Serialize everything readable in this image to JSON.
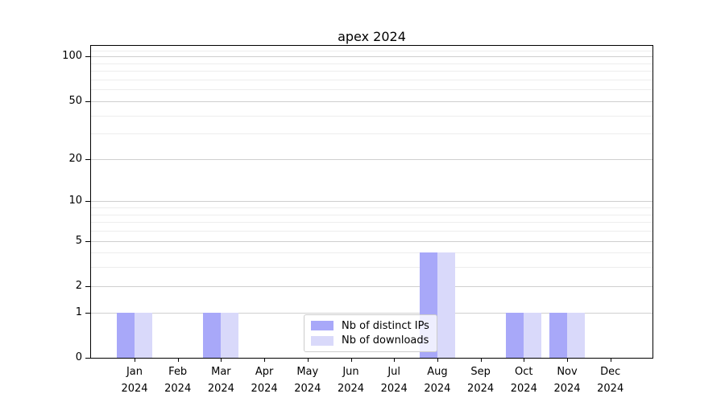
{
  "title": "apex 2024",
  "chart_data": {
    "type": "bar",
    "title": "apex 2024",
    "months": [
      "Jan",
      "Feb",
      "Mar",
      "Apr",
      "May",
      "Jun",
      "Jul",
      "Aug",
      "Sep",
      "Oct",
      "Nov",
      "Dec"
    ],
    "year": "2024",
    "series": [
      {
        "name": "Nb of distinct IPs",
        "color": "#a8a8f9",
        "values": [
          1,
          0,
          1,
          0,
          0,
          0,
          0,
          4,
          0,
          1,
          1,
          0
        ]
      },
      {
        "name": "Nb of downloads",
        "color": "#d9d9fa",
        "values": [
          1,
          0,
          1,
          0,
          0,
          0,
          0,
          4,
          0,
          1,
          1,
          0
        ]
      }
    ],
    "y_axis": {
      "scale": "log10(1+y)",
      "ticks": [
        0,
        1,
        2,
        5,
        10,
        20,
        50,
        100
      ],
      "minor_ticks": [
        3,
        4,
        6,
        7,
        8,
        9,
        30,
        40,
        60,
        70,
        80,
        90,
        110
      ],
      "max": 118
    },
    "grid": true,
    "legend_position": "lower center",
    "colors": {
      "major_grid": "#cfcfcf",
      "minor_grid": "#ededed",
      "axis": "#000000",
      "background": "#ffffff"
    }
  }
}
